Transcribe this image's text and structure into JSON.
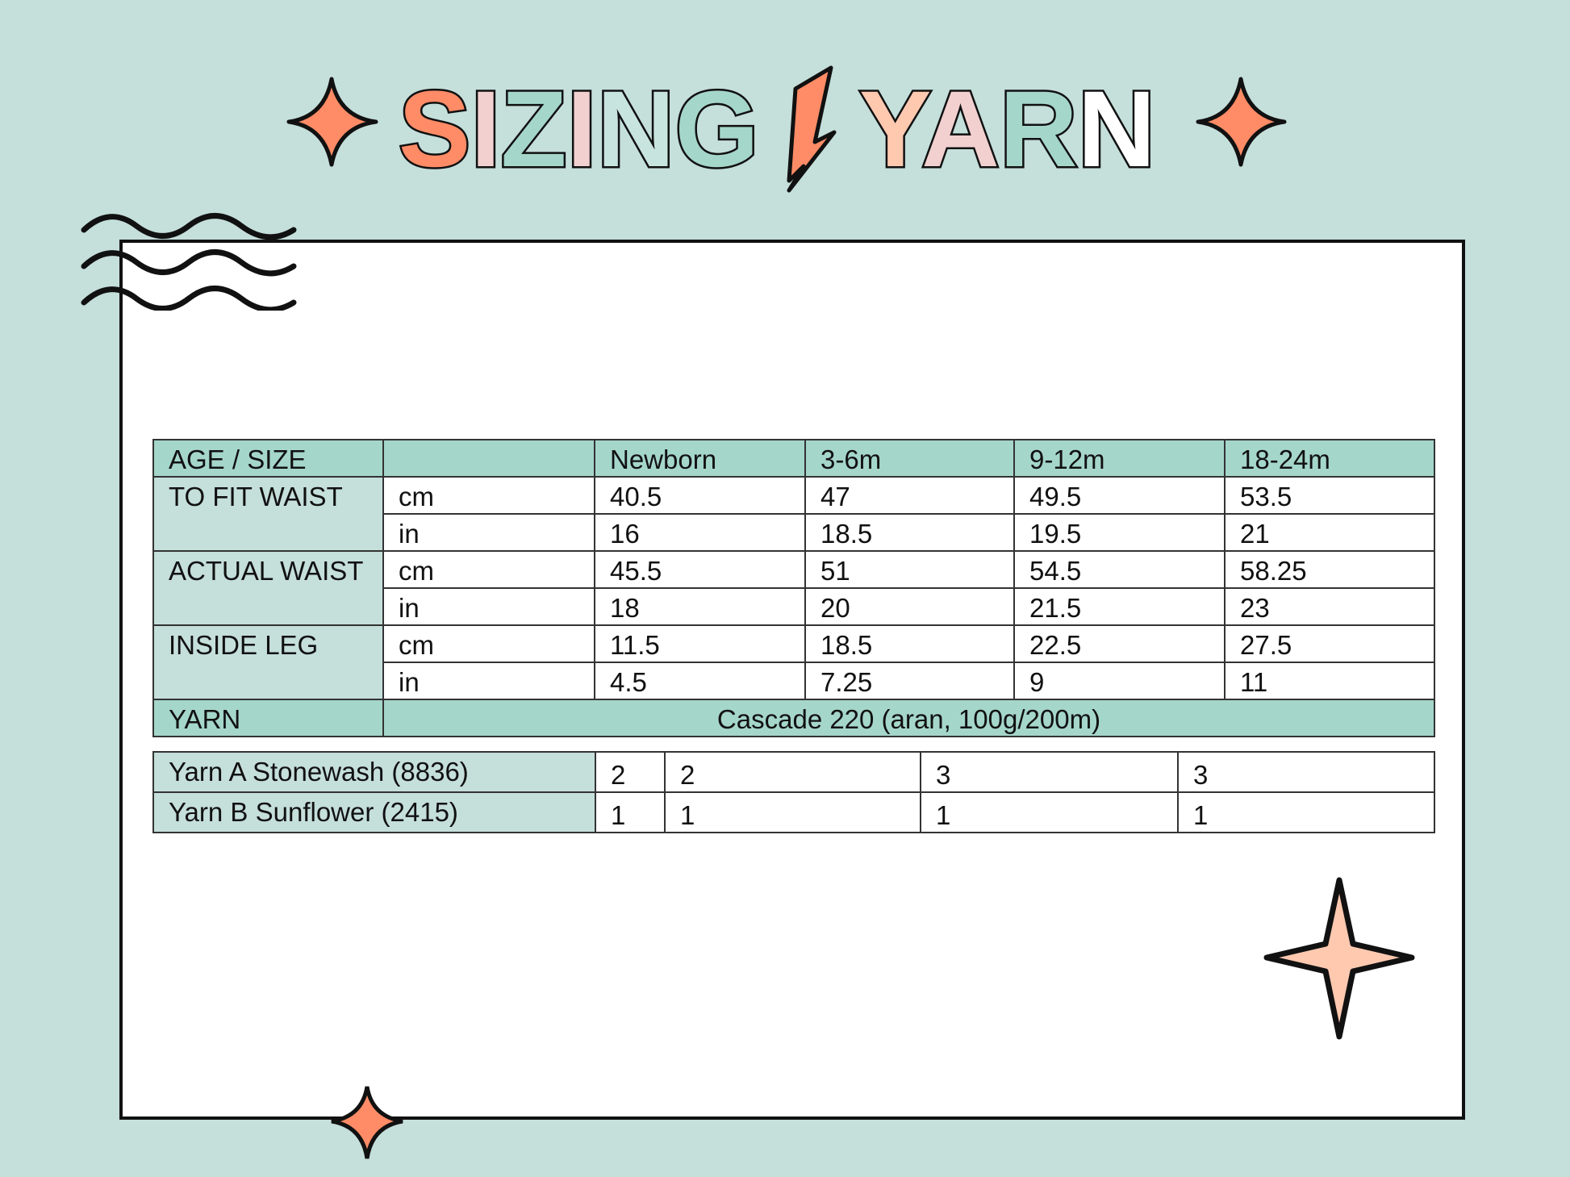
{
  "title": {
    "word1": "SIZING",
    "word2": "YARN"
  },
  "colors": {
    "background": "#c5dfdb",
    "teal": "#a5d6ca",
    "coral": "#ff8c66",
    "pink": "#f2d0d0",
    "peach": "#ffc9b0"
  },
  "icons": [
    "sparkle-star-icon",
    "lightning-bolt-icon",
    "wave-lines-icon"
  ],
  "table": {
    "header": [
      "AGE / SIZE",
      "",
      "Newborn",
      "3-6m",
      "9-12m",
      "18-24m"
    ],
    "groups": [
      {
        "label": "TO FIT WAIST",
        "rows": [
          {
            "unit": "cm",
            "values": [
              "40.5",
              "47",
              "49.5",
              "53.5"
            ]
          },
          {
            "unit": "in",
            "values": [
              "16",
              "18.5",
              "19.5",
              "21"
            ]
          }
        ]
      },
      {
        "label": "ACTUAL WAIST",
        "rows": [
          {
            "unit": "cm",
            "values": [
              "45.5",
              "51",
              "54.5",
              "58.25"
            ]
          },
          {
            "unit": "in",
            "values": [
              "18",
              "20",
              "21.5",
              "23"
            ]
          }
        ]
      },
      {
        "label": "INSIDE LEG",
        "rows": [
          {
            "unit": "cm",
            "values": [
              "11.5",
              "18.5",
              "22.5",
              "27.5"
            ]
          },
          {
            "unit": "in",
            "values": [
              "4.5",
              "7.25",
              "9",
              "11"
            ]
          }
        ]
      }
    ],
    "yarn": {
      "label": "YARN",
      "value": "Cascade 220 (aran, 100g/200m)"
    },
    "yarn_rows": [
      {
        "label": "Yarn A Stonewash (8836)",
        "values": [
          "2",
          "2",
          "3",
          "3"
        ]
      },
      {
        "label": "Yarn B Sunflower (2415)",
        "values": [
          "1",
          "1",
          "1",
          "1"
        ]
      }
    ]
  }
}
